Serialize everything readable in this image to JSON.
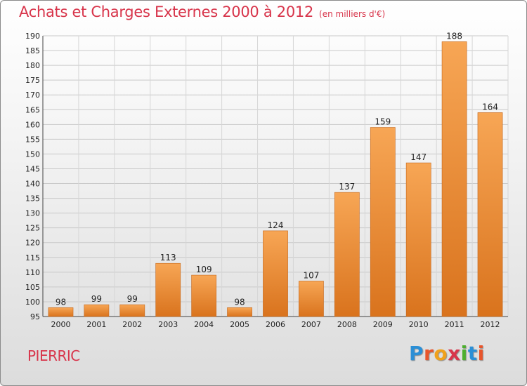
{
  "header": {
    "title": "Achats et Charges Externes 2000 à 2012",
    "subtitle": "(en milliers d'€)"
  },
  "footer": {
    "town": "PIERRIC",
    "brand": "Proxiti",
    "brand_letters": [
      "P",
      "r",
      "o",
      "x",
      "i",
      "t",
      "i"
    ],
    "brand_colors": [
      "#2b8fd6",
      "#e8552b",
      "#f0a11c",
      "#d8354b",
      "#4caf2e",
      "#2b8fd6",
      "#e8552b"
    ]
  },
  "colors": {
    "title": "#d8354b",
    "bar_top": "#f7a655",
    "bar_bottom": "#d9731d",
    "bar_edge": "#c4661a"
  },
  "chart_data": {
    "type": "bar",
    "title": "Achats et Charges Externes 2000 à 2012",
    "subtitle": "(en milliers d'€)",
    "categories": [
      "2000",
      "2001",
      "2002",
      "2003",
      "2004",
      "2005",
      "2006",
      "2007",
      "2008",
      "2009",
      "2010",
      "2011",
      "2012"
    ],
    "values": [
      98,
      99,
      99,
      113,
      109,
      98,
      124,
      107,
      137,
      159,
      147,
      188,
      164
    ],
    "xlabel": "",
    "ylabel": "",
    "ylim": [
      95,
      190
    ],
    "yticks": [
      95,
      100,
      105,
      110,
      115,
      120,
      125,
      130,
      135,
      140,
      145,
      150,
      155,
      160,
      165,
      170,
      175,
      180,
      185,
      190
    ],
    "grid": true,
    "legend": "none"
  }
}
